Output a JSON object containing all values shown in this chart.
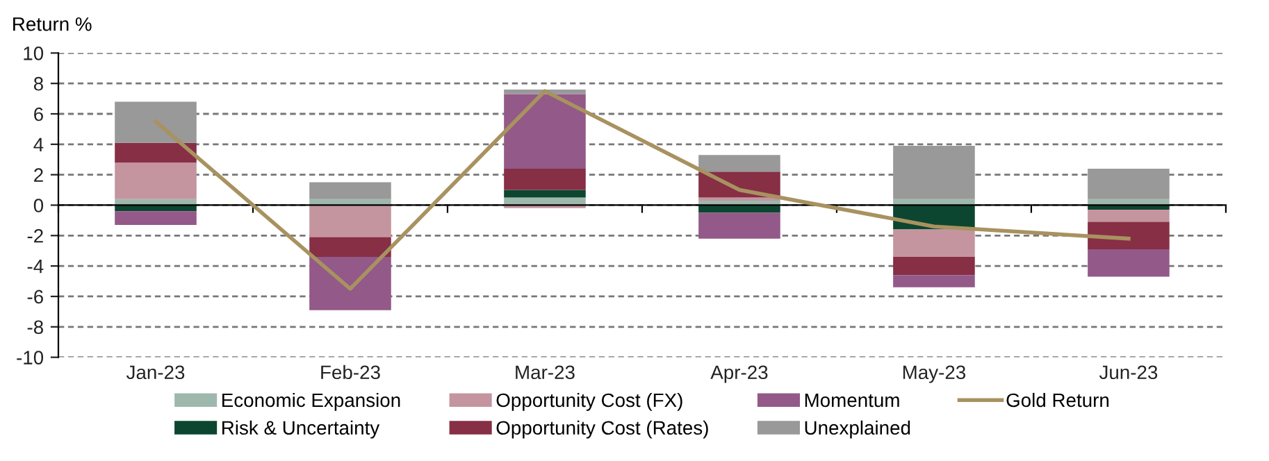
{
  "chart_data": {
    "type": "bar",
    "stacked": true,
    "ylabel": "Return %",
    "categories": [
      "Jan-23",
      "Feb-23",
      "Mar-23",
      "Apr-23",
      "May-23",
      "Jun-23"
    ],
    "series": [
      {
        "name": "Economic Expansion",
        "color": "#9fb8ae",
        "values": [
          0.4,
          0.4,
          0.5,
          0.3,
          0.4,
          0.4
        ]
      },
      {
        "name": "Risk & Uncertainty",
        "color": "#0c4630",
        "values": [
          -0.4,
          0,
          0.5,
          -0.5,
          -1.6,
          -0.3
        ]
      },
      {
        "name": "Opportunity Cost (FX)",
        "color": "#c4959f",
        "values": [
          2.4,
          -2.1,
          -0.2,
          0.2,
          -1.8,
          -0.8
        ]
      },
      {
        "name": "Opportunity Cost (Rates)",
        "color": "#862f45",
        "values": [
          1.3,
          -1.3,
          1.4,
          1.7,
          -1.2,
          -1.8
        ]
      },
      {
        "name": "Momentum",
        "color": "#935988",
        "values": [
          -0.9,
          -3.5,
          4.9,
          -1.7,
          -0.8,
          -1.8
        ]
      },
      {
        "name": "Unexplained",
        "color": "#999999",
        "values": [
          2.7,
          1.1,
          0.3,
          1.1,
          3.5,
          2.0
        ]
      },
      {
        "name": "Gold Return",
        "type": "line",
        "color": "#a89260",
        "values": [
          5.5,
          -5.5,
          7.5,
          1.0,
          -1.4,
          -2.2
        ]
      }
    ],
    "ylim": [
      -10,
      10
    ],
    "yticks": [
      -10,
      -8,
      -6,
      -4,
      -2,
      0,
      2,
      4,
      6,
      8,
      10
    ],
    "grid": "y",
    "legend": "bottom"
  }
}
